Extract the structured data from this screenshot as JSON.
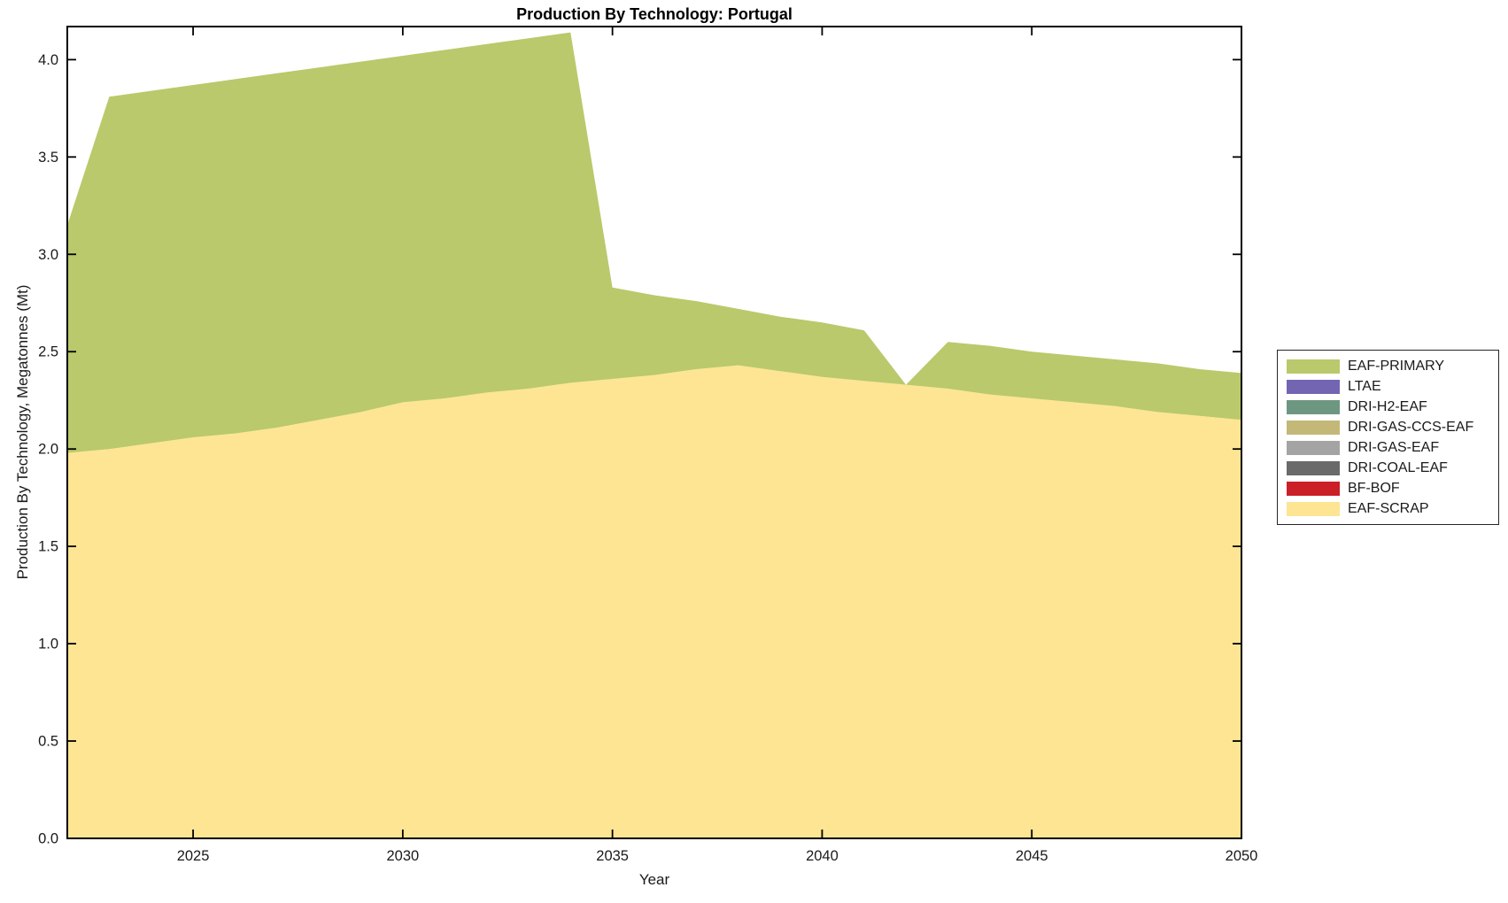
{
  "chart_data": {
    "type": "area",
    "stacked": true,
    "title": "Production By Technology: Portugal",
    "xlabel": "Year",
    "ylabel": "Production By Technology, Megatonnes (Mt)",
    "grid": false,
    "legend_position": "right",
    "xlim": [
      2022,
      2050
    ],
    "ylim": [
      0,
      4.17
    ],
    "xticks": [
      2025,
      2030,
      2035,
      2040,
      2045,
      2050
    ],
    "yticks": [
      0.0,
      0.5,
      1.0,
      1.5,
      2.0,
      2.5,
      3.0,
      3.5,
      4.0
    ],
    "x": [
      2022,
      2023,
      2024,
      2025,
      2026,
      2027,
      2028,
      2029,
      2030,
      2031,
      2032,
      2033,
      2034,
      2035,
      2036,
      2037,
      2038,
      2039,
      2040,
      2041,
      2042,
      2043,
      2044,
      2045,
      2046,
      2047,
      2048,
      2049,
      2050
    ],
    "stack_order_bottom_to_top": [
      "EAF-SCRAP",
      "BF-BOF",
      "DRI-COAL-EAF",
      "DRI-GAS-EAF",
      "DRI-GAS-CCS-EAF",
      "DRI-H2-EAF",
      "LTAE",
      "EAF-PRIMARY"
    ],
    "legend_order_top_to_bottom": [
      "EAF-PRIMARY",
      "LTAE",
      "DRI-H2-EAF",
      "DRI-GAS-CCS-EAF",
      "DRI-GAS-EAF",
      "DRI-COAL-EAF",
      "BF-BOF",
      "EAF-SCRAP"
    ],
    "series": [
      {
        "name": "EAF-SCRAP",
        "color": "#fee593",
        "values": [
          1.98,
          2.0,
          2.03,
          2.06,
          2.08,
          2.11,
          2.15,
          2.19,
          2.24,
          2.26,
          2.29,
          2.31,
          2.34,
          2.36,
          2.38,
          2.41,
          2.43,
          2.4,
          2.37,
          2.35,
          2.33,
          2.31,
          2.28,
          2.26,
          2.24,
          2.22,
          2.19,
          2.17,
          2.15
        ]
      },
      {
        "name": "BF-BOF",
        "color": "#cb2027",
        "values": [
          0,
          0,
          0,
          0,
          0,
          0,
          0,
          0,
          0,
          0,
          0,
          0,
          0,
          0,
          0,
          0,
          0,
          0,
          0,
          0,
          0,
          0,
          0,
          0,
          0,
          0,
          0,
          0,
          0
        ]
      },
      {
        "name": "DRI-COAL-EAF",
        "color": "#6a6a6a",
        "values": [
          0,
          0,
          0,
          0,
          0,
          0,
          0,
          0,
          0,
          0,
          0,
          0,
          0,
          0,
          0,
          0,
          0,
          0,
          0,
          0,
          0,
          0,
          0,
          0,
          0,
          0,
          0,
          0,
          0
        ]
      },
      {
        "name": "DRI-GAS-EAF",
        "color": "#a4a4a4",
        "values": [
          0,
          0,
          0,
          0,
          0,
          0,
          0,
          0,
          0,
          0,
          0,
          0,
          0,
          0,
          0,
          0,
          0,
          0,
          0,
          0,
          0,
          0,
          0,
          0,
          0,
          0,
          0,
          0,
          0
        ]
      },
      {
        "name": "DRI-GAS-CCS-EAF",
        "color": "#c3b878",
        "values": [
          0,
          0,
          0,
          0,
          0,
          0,
          0,
          0,
          0,
          0,
          0,
          0,
          0,
          0,
          0,
          0,
          0,
          0,
          0,
          0,
          0,
          0,
          0,
          0,
          0,
          0,
          0,
          0,
          0
        ]
      },
      {
        "name": "DRI-H2-EAF",
        "color": "#6e9781",
        "values": [
          0,
          0,
          0,
          0,
          0,
          0,
          0,
          0,
          0,
          0,
          0,
          0,
          0,
          0,
          0,
          0,
          0,
          0,
          0,
          0,
          0,
          0,
          0,
          0,
          0,
          0,
          0,
          0,
          0
        ]
      },
      {
        "name": "LTAE",
        "color": "#7465b3",
        "values": [
          0,
          0,
          0,
          0,
          0,
          0,
          0,
          0,
          0,
          0,
          0,
          0,
          0,
          0,
          0,
          0,
          0,
          0,
          0,
          0,
          0,
          0,
          0,
          0,
          0,
          0,
          0,
          0,
          0
        ]
      },
      {
        "name": "EAF-PRIMARY",
        "color": "#bac96b",
        "values": [
          1.17,
          1.81,
          1.81,
          1.81,
          1.82,
          1.82,
          1.81,
          1.8,
          1.78,
          1.79,
          1.79,
          1.8,
          1.8,
          0.47,
          0.41,
          0.35,
          0.29,
          0.28,
          0.28,
          0.26,
          0.0,
          0.24,
          0.25,
          0.24,
          0.24,
          0.24,
          0.25,
          0.24,
          0.24
        ]
      }
    ]
  }
}
